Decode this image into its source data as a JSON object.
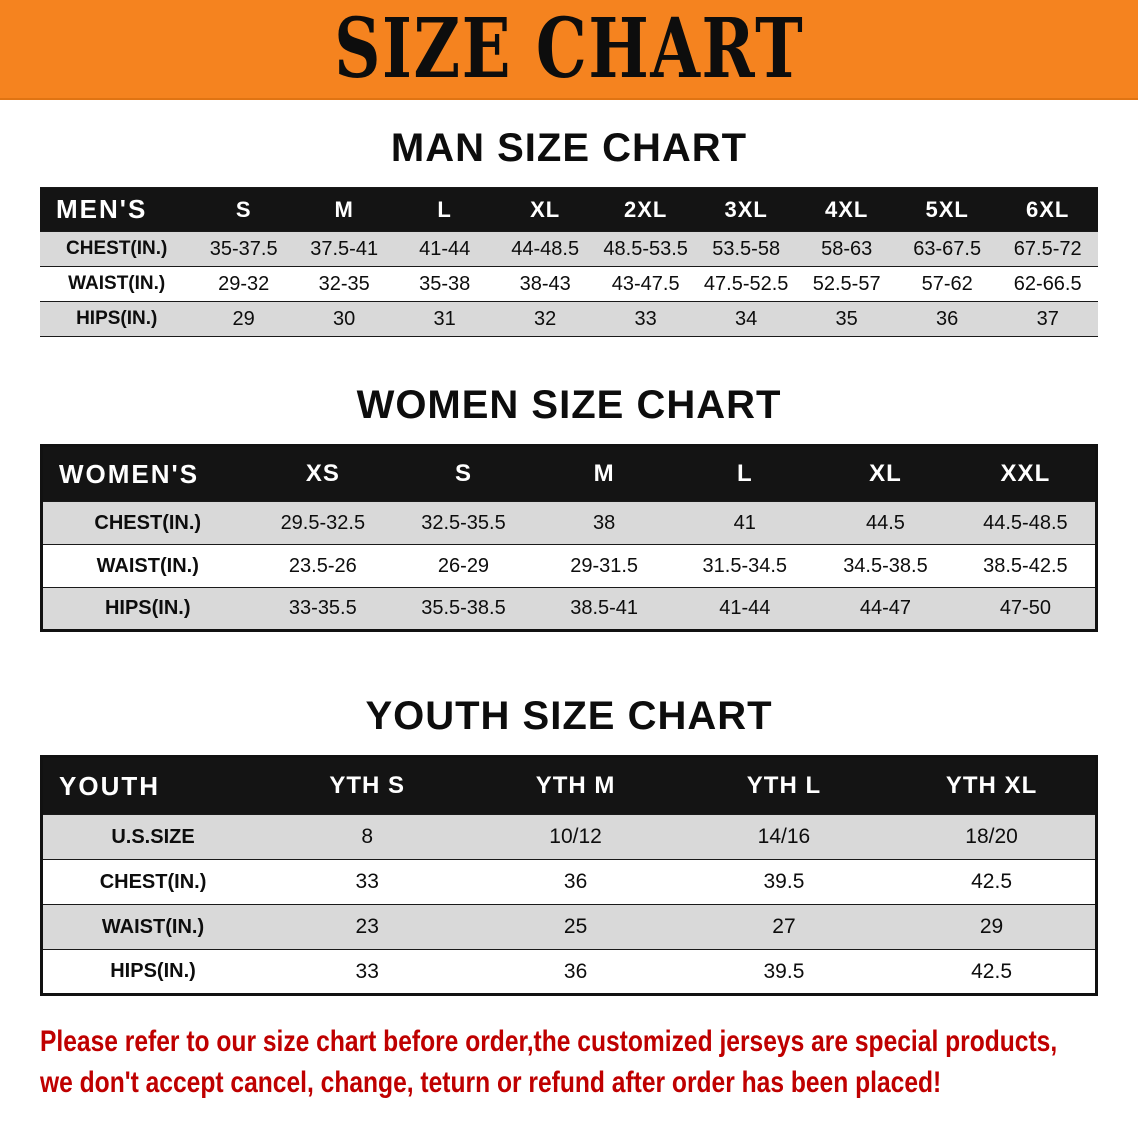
{
  "banner": {
    "title": "SIZE CHART"
  },
  "sections": [
    {
      "heading": "MAN SIZE CHART",
      "table": {
        "header": [
          "MEN'S",
          "S",
          "M",
          "L",
          "XL",
          "2XL",
          "3XL",
          "4XL",
          "5XL",
          "6XL"
        ],
        "rows": [
          [
            "CHEST(IN.)",
            "35-37.5",
            "37.5-41",
            "41-44",
            "44-48.5",
            "48.5-53.5",
            "53.5-58",
            "58-63",
            "63-67.5",
            "67.5-72"
          ],
          [
            "WAIST(IN.)",
            "29-32",
            "32-35",
            "35-38",
            "38-43",
            "43-47.5",
            "47.5-52.5",
            "52.5-57",
            "57-62",
            "62-66.5"
          ],
          [
            "HIPS(IN.)",
            "29",
            "30",
            "31",
            "32",
            "33",
            "34",
            "35",
            "36",
            "37"
          ]
        ]
      }
    },
    {
      "heading": "WOMEN SIZE CHART",
      "table": {
        "header": [
          "WOMEN'S",
          "XS",
          "S",
          "M",
          "L",
          "XL",
          "XXL"
        ],
        "rows": [
          [
            "CHEST(IN.)",
            "29.5-32.5",
            "32.5-35.5",
            "38",
            "41",
            "44.5",
            "44.5-48.5"
          ],
          [
            "WAIST(IN.)",
            "23.5-26",
            "26-29",
            "29-31.5",
            "31.5-34.5",
            "34.5-38.5",
            "38.5-42.5"
          ],
          [
            "HIPS(IN.)",
            "33-35.5",
            "35.5-38.5",
            "38.5-41",
            "41-44",
            "44-47",
            "47-50"
          ]
        ]
      }
    },
    {
      "heading": "YOUTH SIZE CHART",
      "table": {
        "header": [
          "YOUTH",
          "YTH S",
          "YTH M",
          "YTH L",
          "YTH XL"
        ],
        "rows": [
          [
            "U.S.SIZE",
            "8",
            "10/12",
            "14/16",
            "18/20"
          ],
          [
            "CHEST(IN.)",
            "33",
            "36",
            "39.5",
            "42.5"
          ],
          [
            "WAIST(IN.)",
            "23",
            "25",
            "27",
            "29"
          ],
          [
            "HIPS(IN.)",
            "33",
            "36",
            "39.5",
            "42.5"
          ]
        ]
      }
    }
  ],
  "footer": {
    "line1": "Please refer to our size chart before order,the customized jerseys are special products,",
    "line2": "we don't accept cancel, change, teturn or refund after order has been placed!"
  },
  "colors": {
    "banner_bg": "#f5831f",
    "header_bar": "#141414",
    "row_shade": "#d9d9d9",
    "footer_text": "#bf0000"
  }
}
